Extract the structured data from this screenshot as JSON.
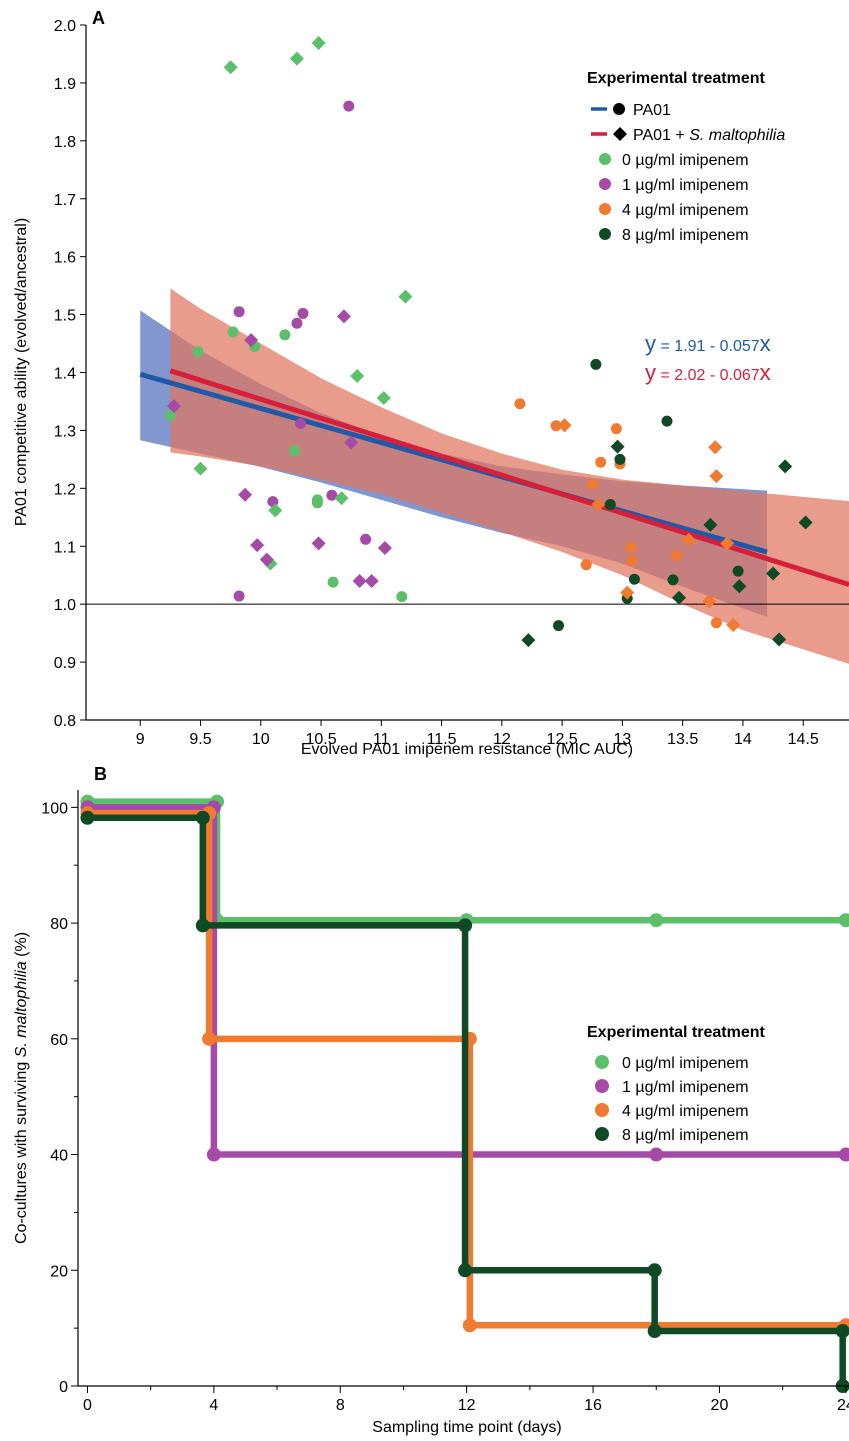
{
  "colors": {
    "pa01": "#1f5aa8",
    "pa01_sm": "#d61f3a",
    "pa01_band": "#5f78c2",
    "pa01_sm_band": "#e0765f",
    "imi0": "#5cbf6a",
    "imi1": "#a64aa8",
    "imi4": "#f07a30",
    "imi8": "#0f4a24",
    "axis": "#000000"
  },
  "chart_data": [
    {
      "type": "scatter",
      "panel": "A",
      "ylabel": "PA01 competitive ability (evolved/ancestral)",
      "xlabel": "Evolved PA01 imipenem resistance (MIC AUC)",
      "xlim": [
        8.55,
        14.88
      ],
      "ylim": [
        0.8,
        2.0
      ],
      "xticks": [
        9,
        9.5,
        10,
        10.5,
        11,
        11.5,
        12,
        12.5,
        13,
        13.5,
        14,
        14.5
      ],
      "yticks": [
        0.8,
        0.9,
        1.0,
        1.1,
        1.2,
        1.3,
        1.4,
        1.5,
        1.6,
        1.7,
        1.8,
        1.9,
        2.0
      ],
      "reference_line": 1.0,
      "legend": {
        "title": "Experimental treatment",
        "entries": [
          {
            "label": "PA01",
            "kind": "line-circle",
            "color": "pa01"
          },
          {
            "label": "PA01 + ",
            "italic": "S. maltophilia",
            "kind": "line-diamond",
            "color": "pa01_sm"
          },
          {
            "label": "0 µg/ml imipenem",
            "kind": "circle",
            "color": "imi0"
          },
          {
            "label": "1 µg/ml imipenem",
            "kind": "circle",
            "color": "imi1"
          },
          {
            "label": "4 µg/ml imipenem",
            "kind": "circle",
            "color": "imi4"
          },
          {
            "label": "8 µg/ml imipenem",
            "kind": "circle",
            "color": "imi8"
          }
        ]
      },
      "equations": [
        {
          "y": "y",
          "rest": " = 1.91 - 0.057",
          "x": "x",
          "color": "pa01"
        },
        {
          "y": "y",
          "rest": " = 2.02 - 0.067",
          "x": "x",
          "color": "pa01_sm"
        }
      ],
      "fits": [
        {
          "series": "PA01",
          "color": "pa01",
          "band": "pa01_band",
          "x": [
            9.0,
            14.2
          ],
          "y": [
            1.397,
            1.09
          ],
          "band_upper": [
            [
              9.0,
              1.507
            ],
            [
              9.5,
              1.438
            ],
            [
              10,
              1.38
            ],
            [
              10.5,
              1.33
            ],
            [
              11,
              1.29
            ],
            [
              11.5,
              1.26
            ],
            [
              12,
              1.238
            ],
            [
              12.5,
              1.224
            ],
            [
              13,
              1.212
            ],
            [
              13.5,
              1.205
            ],
            [
              14.2,
              1.196
            ]
          ],
          "band_lower": [
            [
              9.0,
              1.283
            ],
            [
              9.5,
              1.26
            ],
            [
              10,
              1.237
            ],
            [
              10.5,
              1.21
            ],
            [
              11,
              1.18
            ],
            [
              11.5,
              1.15
            ],
            [
              12,
              1.123
            ],
            [
              12.5,
              1.1
            ],
            [
              13,
              1.07
            ],
            [
              13.5,
              1.03
            ],
            [
              14.2,
              0.978
            ]
          ]
        },
        {
          "series": "PA01 + S. maltophilia",
          "color": "pa01_sm",
          "band": "pa01_sm_band",
          "x": [
            9.25,
            14.88
          ],
          "y": [
            1.403,
            1.034
          ],
          "band_upper": [
            [
              9.25,
              1.545
            ],
            [
              9.5,
              1.51
            ],
            [
              10,
              1.45
            ],
            [
              10.5,
              1.39
            ],
            [
              11,
              1.34
            ],
            [
              11.5,
              1.295
            ],
            [
              12,
              1.26
            ],
            [
              12.5,
              1.232
            ],
            [
              13,
              1.215
            ],
            [
              13.5,
              1.205
            ],
            [
              14,
              1.195
            ],
            [
              14.88,
              1.178
            ]
          ],
          "band_lower": [
            [
              9.25,
              1.262
            ],
            [
              9.5,
              1.255
            ],
            [
              10,
              1.238
            ],
            [
              10.5,
              1.215
            ],
            [
              11,
              1.19
            ],
            [
              11.5,
              1.158
            ],
            [
              12,
              1.125
            ],
            [
              12.5,
              1.09
            ],
            [
              13,
              1.05
            ],
            [
              13.5,
              1.0
            ],
            [
              14,
              0.955
            ],
            [
              14.88,
              0.897
            ]
          ]
        }
      ],
      "points": [
        {
          "x": 9.25,
          "y": 1.326,
          "g": "imi0",
          "m": "circle"
        },
        {
          "x": 9.48,
          "y": 1.436,
          "g": "imi0",
          "m": "circle"
        },
        {
          "x": 9.77,
          "y": 1.47,
          "g": "imi0",
          "m": "circle"
        },
        {
          "x": 9.95,
          "y": 1.445,
          "g": "imi0",
          "m": "circle"
        },
        {
          "x": 10.2,
          "y": 1.465,
          "g": "imi0",
          "m": "circle"
        },
        {
          "x": 10.28,
          "y": 1.265,
          "g": "imi0",
          "m": "circle"
        },
        {
          "x": 10.47,
          "y": 1.18,
          "g": "imi0",
          "m": "circle"
        },
        {
          "x": 10.47,
          "y": 1.175,
          "g": "imi0",
          "m": "circle"
        },
        {
          "x": 10.6,
          "y": 1.038,
          "g": "imi0",
          "m": "circle"
        },
        {
          "x": 11.17,
          "y": 1.013,
          "g": "imi0",
          "m": "circle"
        },
        {
          "x": 9.82,
          "y": 1.505,
          "g": "imi1",
          "m": "circle"
        },
        {
          "x": 9.82,
          "y": 1.014,
          "g": "imi1",
          "m": "circle"
        },
        {
          "x": 10.1,
          "y": 1.177,
          "g": "imi1",
          "m": "circle"
        },
        {
          "x": 10.3,
          "y": 1.485,
          "g": "imi1",
          "m": "circle"
        },
        {
          "x": 10.35,
          "y": 1.502,
          "g": "imi1",
          "m": "circle"
        },
        {
          "x": 10.33,
          "y": 1.312,
          "g": "imi1",
          "m": "circle"
        },
        {
          "x": 10.59,
          "y": 1.188,
          "g": "imi1",
          "m": "circle"
        },
        {
          "x": 10.73,
          "y": 1.86,
          "g": "imi1",
          "m": "circle"
        },
        {
          "x": 10.87,
          "y": 1.112,
          "g": "imi1",
          "m": "circle"
        },
        {
          "x": 12.15,
          "y": 1.346,
          "g": "imi4",
          "m": "circle"
        },
        {
          "x": 12.45,
          "y": 1.308,
          "g": "imi4",
          "m": "circle"
        },
        {
          "x": 12.7,
          "y": 1.068,
          "g": "imi4",
          "m": "circle"
        },
        {
          "x": 12.75,
          "y": 1.207,
          "g": "imi4",
          "m": "circle"
        },
        {
          "x": 12.82,
          "y": 1.245,
          "g": "imi4",
          "m": "circle"
        },
        {
          "x": 12.95,
          "y": 1.303,
          "g": "imi4",
          "m": "circle"
        },
        {
          "x": 12.98,
          "y": 1.242,
          "g": "imi4",
          "m": "circle"
        },
        {
          "x": 13.07,
          "y": 1.098,
          "g": "imi4",
          "m": "circle"
        },
        {
          "x": 13.08,
          "y": 1.075,
          "g": "imi4",
          "m": "circle"
        },
        {
          "x": 13.78,
          "y": 0.968,
          "g": "imi4",
          "m": "circle"
        },
        {
          "x": 12.47,
          "y": 0.963,
          "g": "imi8",
          "m": "circle"
        },
        {
          "x": 12.78,
          "y": 1.414,
          "g": "imi8",
          "m": "circle"
        },
        {
          "x": 12.9,
          "y": 1.172,
          "g": "imi8",
          "m": "circle"
        },
        {
          "x": 12.98,
          "y": 1.25,
          "g": "imi8",
          "m": "circle"
        },
        {
          "x": 13.04,
          "y": 1.01,
          "g": "imi8",
          "m": "circle"
        },
        {
          "x": 13.1,
          "y": 1.043,
          "g": "imi8",
          "m": "circle"
        },
        {
          "x": 13.37,
          "y": 1.316,
          "g": "imi8",
          "m": "circle"
        },
        {
          "x": 13.42,
          "y": 1.042,
          "g": "imi8",
          "m": "circle"
        },
        {
          "x": 13.96,
          "y": 1.057,
          "g": "imi8",
          "m": "circle"
        },
        {
          "x": 9.5,
          "y": 1.234,
          "g": "imi0",
          "m": "diamond"
        },
        {
          "x": 9.75,
          "y": 1.927,
          "g": "imi0",
          "m": "diamond"
        },
        {
          "x": 10.08,
          "y": 1.07,
          "g": "imi0",
          "m": "diamond"
        },
        {
          "x": 10.12,
          "y": 1.162,
          "g": "imi0",
          "m": "diamond"
        },
        {
          "x": 10.3,
          "y": 1.942,
          "g": "imi0",
          "m": "diamond"
        },
        {
          "x": 10.48,
          "y": 1.969,
          "g": "imi0",
          "m": "diamond"
        },
        {
          "x": 10.67,
          "y": 1.183,
          "g": "imi0",
          "m": "diamond"
        },
        {
          "x": 10.8,
          "y": 1.394,
          "g": "imi0",
          "m": "diamond"
        },
        {
          "x": 11.02,
          "y": 1.356,
          "g": "imi0",
          "m": "diamond"
        },
        {
          "x": 11.2,
          "y": 1.531,
          "g": "imi0",
          "m": "diamond"
        },
        {
          "x": 9.28,
          "y": 1.342,
          "g": "imi1",
          "m": "diamond"
        },
        {
          "x": 9.87,
          "y": 1.189,
          "g": "imi1",
          "m": "diamond"
        },
        {
          "x": 9.92,
          "y": 1.456,
          "g": "imi1",
          "m": "diamond"
        },
        {
          "x": 9.97,
          "y": 1.102,
          "g": "imi1",
          "m": "diamond"
        },
        {
          "x": 10.05,
          "y": 1.077,
          "g": "imi1",
          "m": "diamond"
        },
        {
          "x": 10.48,
          "y": 1.105,
          "g": "imi1",
          "m": "diamond"
        },
        {
          "x": 10.69,
          "y": 1.497,
          "g": "imi1",
          "m": "diamond"
        },
        {
          "x": 10.75,
          "y": 1.279,
          "g": "imi1",
          "m": "diamond"
        },
        {
          "x": 10.82,
          "y": 1.04,
          "g": "imi1",
          "m": "diamond"
        },
        {
          "x": 10.92,
          "y": 1.04,
          "g": "imi1",
          "m": "diamond"
        },
        {
          "x": 11.03,
          "y": 1.097,
          "g": "imi1",
          "m": "diamond"
        },
        {
          "x": 12.52,
          "y": 1.309,
          "g": "imi4",
          "m": "diamond"
        },
        {
          "x": 12.8,
          "y": 1.172,
          "g": "imi4",
          "m": "diamond"
        },
        {
          "x": 13.04,
          "y": 1.02,
          "g": "imi4",
          "m": "diamond"
        },
        {
          "x": 13.45,
          "y": 1.084,
          "g": "imi4",
          "m": "diamond"
        },
        {
          "x": 13.55,
          "y": 1.111,
          "g": "imi4",
          "m": "diamond"
        },
        {
          "x": 13.72,
          "y": 1.005,
          "g": "imi4",
          "m": "diamond"
        },
        {
          "x": 13.77,
          "y": 1.271,
          "g": "imi4",
          "m": "diamond"
        },
        {
          "x": 13.78,
          "y": 1.221,
          "g": "imi4",
          "m": "diamond"
        },
        {
          "x": 13.87,
          "y": 1.105,
          "g": "imi4",
          "m": "diamond"
        },
        {
          "x": 13.92,
          "y": 0.964,
          "g": "imi4",
          "m": "diamond"
        },
        {
          "x": 12.22,
          "y": 0.938,
          "g": "imi8",
          "m": "diamond"
        },
        {
          "x": 12.96,
          "y": 1.272,
          "g": "imi8",
          "m": "diamond"
        },
        {
          "x": 13.47,
          "y": 1.011,
          "g": "imi8",
          "m": "diamond"
        },
        {
          "x": 13.73,
          "y": 1.137,
          "g": "imi8",
          "m": "diamond"
        },
        {
          "x": 13.97,
          "y": 1.031,
          "g": "imi8",
          "m": "diamond"
        },
        {
          "x": 14.25,
          "y": 1.053,
          "g": "imi8",
          "m": "diamond"
        },
        {
          "x": 14.3,
          "y": 0.939,
          "g": "imi8",
          "m": "diamond"
        },
        {
          "x": 14.35,
          "y": 1.238,
          "g": "imi8",
          "m": "diamond"
        },
        {
          "x": 14.52,
          "y": 1.141,
          "g": "imi8",
          "m": "diamond"
        }
      ]
    },
    {
      "type": "line",
      "panel": "B",
      "ylabel_pre": "Co-cultures with surviving ",
      "ylabel_italic": "S. maltophilia",
      "ylabel_post": " (%)",
      "xlabel": "Sampling time point (days)",
      "xlim": [
        -0.3,
        24.1
      ],
      "ylim": [
        0,
        103
      ],
      "xticks": [
        0,
        4,
        8,
        12,
        16,
        20,
        24
      ],
      "yticks": [
        0,
        20,
        40,
        60,
        80,
        100
      ],
      "legend": {
        "title": "Experimental treatment",
        "entries": [
          {
            "label": "0 µg/ml imipenem",
            "color": "imi0"
          },
          {
            "label": "1 µg/ml imipenem",
            "color": "imi1"
          },
          {
            "label": "4 µg/ml imipenem",
            "color": "imi4"
          },
          {
            "label": "8 µg/ml imipenem",
            "color": "imi8"
          }
        ]
      },
      "series": [
        {
          "name": "0 µg/ml imipenem",
          "color": "imi0",
          "path": [
            [
              0,
              101
            ],
            [
              4.1,
              101
            ],
            [
              4.1,
              80.5
            ],
            [
              24,
              80.5
            ]
          ],
          "markers": [
            [
              0,
              101
            ],
            [
              4.1,
              101
            ],
            [
              4.1,
              80.5
            ],
            [
              12,
              80.5
            ],
            [
              18,
              80.5
            ],
            [
              24,
              80.5
            ]
          ]
        },
        {
          "name": "1 µg/ml imipenem",
          "color": "imi1",
          "path": [
            [
              0,
              100
            ],
            [
              4,
              100
            ],
            [
              4,
              40
            ],
            [
              24,
              40
            ]
          ],
          "markers": [
            [
              0,
              100
            ],
            [
              4,
              100
            ],
            [
              4,
              40
            ],
            [
              18,
              40
            ],
            [
              24,
              40
            ]
          ]
        },
        {
          "name": "4 µg/ml imipenem",
          "color": "imi4",
          "path": [
            [
              0,
              99
            ],
            [
              3.85,
              99
            ],
            [
              3.85,
              60
            ],
            [
              12.1,
              60
            ],
            [
              12.1,
              10.5
            ],
            [
              24,
              10.5
            ]
          ],
          "markers": [
            [
              0,
              99
            ],
            [
              3.85,
              99
            ],
            [
              3.85,
              60
            ],
            [
              12.1,
              60
            ],
            [
              12.1,
              10.5
            ],
            [
              24,
              10.5
            ]
          ]
        },
        {
          "name": "8 µg/ml imipenem",
          "color": "imi8",
          "path": [
            [
              0,
              98.2
            ],
            [
              3.65,
              98.2
            ],
            [
              3.65,
              79.6
            ],
            [
              11.95,
              79.6
            ],
            [
              11.95,
              20
            ],
            [
              17.95,
              20
            ],
            [
              17.95,
              9.5
            ],
            [
              23.9,
              9.5
            ],
            [
              23.9,
              0
            ]
          ],
          "markers": [
            [
              0,
              98.2
            ],
            [
              3.65,
              98.2
            ],
            [
              3.65,
              79.6
            ],
            [
              11.95,
              79.6
            ],
            [
              11.95,
              20
            ],
            [
              17.95,
              20
            ],
            [
              17.95,
              9.5
            ],
            [
              23.9,
              9.5
            ],
            [
              23.9,
              0
            ]
          ]
        }
      ]
    }
  ]
}
